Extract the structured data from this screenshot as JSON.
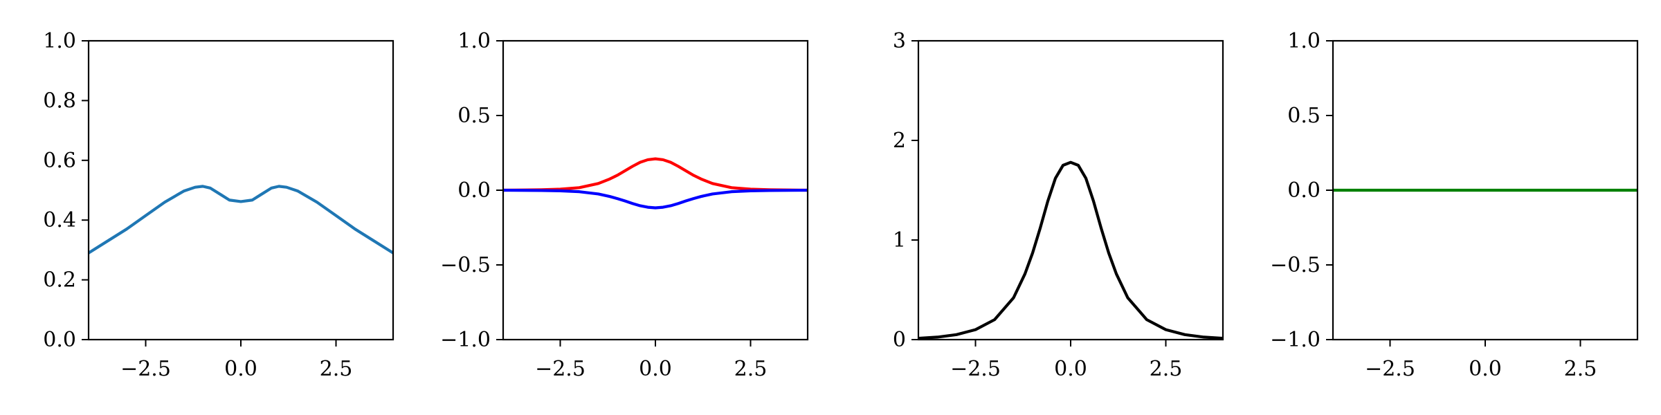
{
  "chart_data": [
    {
      "type": "line",
      "xlim": [
        -4,
        4
      ],
      "ylim": [
        0,
        1
      ],
      "xticks": [
        -2.5,
        0,
        2.5
      ],
      "xtick_labels": [
        "−2.5",
        "0.0",
        "2.5"
      ],
      "yticks": [
        0,
        0.2,
        0.4,
        0.6,
        0.8,
        1.0
      ],
      "ytick_labels": [
        "0.0",
        "0.2",
        "0.4",
        "0.6",
        "0.8",
        "1.0"
      ],
      "grid": false,
      "series": [
        {
          "color": "#1f77b4",
          "x": [
            -4.0,
            -3.5,
            -3.0,
            -2.5,
            -2.0,
            -1.5,
            -1.2,
            -1.0,
            -0.8,
            -0.5,
            -0.3,
            0.0,
            0.3,
            0.5,
            0.8,
            1.0,
            1.2,
            1.5,
            2.0,
            2.5,
            3.0,
            3.5,
            4.0
          ],
          "y": [
            0.29,
            0.33,
            0.37,
            0.415,
            0.46,
            0.497,
            0.51,
            0.513,
            0.507,
            0.483,
            0.467,
            0.462,
            0.467,
            0.483,
            0.507,
            0.513,
            0.51,
            0.497,
            0.46,
            0.415,
            0.37,
            0.33,
            0.29
          ]
        }
      ]
    },
    {
      "type": "line",
      "xlim": [
        -4,
        4
      ],
      "ylim": [
        -1,
        1
      ],
      "xticks": [
        -2.5,
        0,
        2.5
      ],
      "xtick_labels": [
        "−2.5",
        "0.0",
        "2.5"
      ],
      "yticks": [
        -1,
        -0.5,
        0,
        0.5,
        1
      ],
      "ytick_labels": [
        "−1.0",
        "−0.5",
        "0.0",
        "0.5",
        "1.0"
      ],
      "grid": false,
      "series": [
        {
          "color": "#ff0000",
          "x": [
            -4.0,
            -3.0,
            -2.5,
            -2.0,
            -1.5,
            -1.2,
            -1.0,
            -0.8,
            -0.6,
            -0.4,
            -0.2,
            0.0,
            0.2,
            0.4,
            0.6,
            0.8,
            1.0,
            1.2,
            1.5,
            2.0,
            2.5,
            3.0,
            4.0
          ],
          "y": [
            0.0,
            0.003,
            0.007,
            0.017,
            0.045,
            0.075,
            0.1,
            0.13,
            0.16,
            0.187,
            0.204,
            0.21,
            0.204,
            0.187,
            0.16,
            0.13,
            0.1,
            0.075,
            0.045,
            0.017,
            0.007,
            0.003,
            0.0
          ]
        },
        {
          "color": "#0000ff",
          "x": [
            -4.0,
            -3.0,
            -2.5,
            -2.0,
            -1.5,
            -1.2,
            -1.0,
            -0.8,
            -0.6,
            -0.4,
            -0.2,
            0.0,
            0.2,
            0.4,
            0.6,
            0.8,
            1.0,
            1.2,
            1.5,
            2.0,
            2.5,
            3.0,
            4.0
          ],
          "y": [
            0.0,
            -0.002,
            -0.004,
            -0.01,
            -0.025,
            -0.042,
            -0.056,
            -0.072,
            -0.089,
            -0.104,
            -0.114,
            -0.118,
            -0.114,
            -0.104,
            -0.089,
            -0.072,
            -0.056,
            -0.042,
            -0.025,
            -0.01,
            -0.004,
            -0.002,
            0.0
          ]
        }
      ]
    },
    {
      "type": "line",
      "xlim": [
        -4,
        4
      ],
      "ylim": [
        0,
        3
      ],
      "xticks": [
        -2.5,
        0,
        2.5
      ],
      "xtick_labels": [
        "−2.5",
        "0.0",
        "2.5"
      ],
      "yticks": [
        0,
        1,
        2,
        3
      ],
      "ytick_labels": [
        "0",
        "1",
        "2",
        "3"
      ],
      "grid": false,
      "series": [
        {
          "color": "#000000",
          "x": [
            -4.0,
            -3.5,
            -3.0,
            -2.5,
            -2.0,
            -1.5,
            -1.2,
            -1.0,
            -0.8,
            -0.6,
            -0.4,
            -0.2,
            0.0,
            0.2,
            0.4,
            0.6,
            0.8,
            1.0,
            1.2,
            1.5,
            2.0,
            2.5,
            3.0,
            3.5,
            4.0
          ],
          "y": [
            0.013,
            0.025,
            0.05,
            0.1,
            0.2,
            0.42,
            0.66,
            0.87,
            1.12,
            1.39,
            1.62,
            1.75,
            1.78,
            1.75,
            1.62,
            1.39,
            1.12,
            0.87,
            0.66,
            0.42,
            0.2,
            0.1,
            0.05,
            0.025,
            0.013
          ]
        }
      ]
    },
    {
      "type": "line",
      "xlim": [
        -4,
        4
      ],
      "ylim": [
        -1,
        1
      ],
      "xticks": [
        -2.5,
        0,
        2.5
      ],
      "xtick_labels": [
        "−2.5",
        "0.0",
        "2.5"
      ],
      "yticks": [
        -1,
        -0.5,
        0,
        0.5,
        1
      ],
      "ytick_labels": [
        "−1.0",
        "−0.5",
        "0.0",
        "0.5",
        "1.0"
      ],
      "grid": false,
      "series": [
        {
          "color": "#008000",
          "x": [
            -4.0,
            4.0
          ],
          "y": [
            0.0,
            0.0
          ]
        }
      ]
    }
  ]
}
